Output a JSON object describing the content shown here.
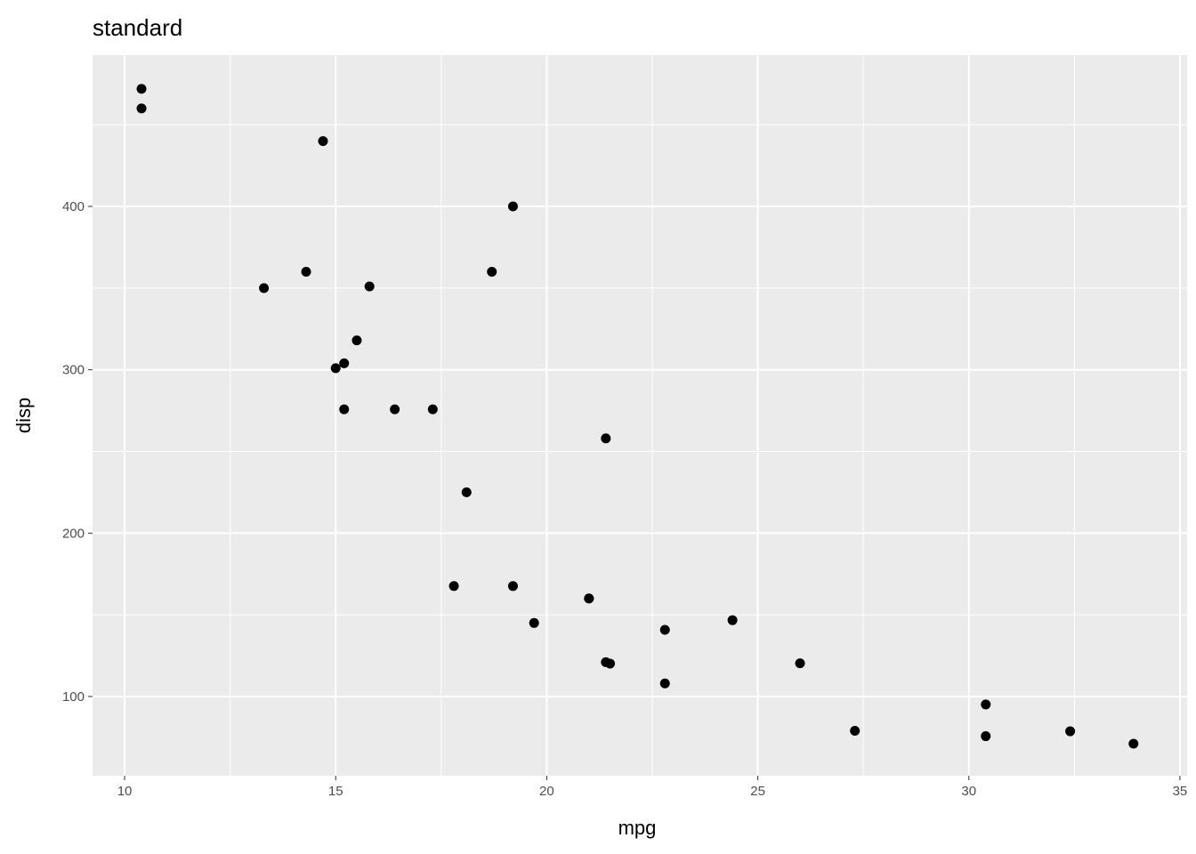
{
  "chart_data": {
    "type": "scatter",
    "title": "standard",
    "xlabel": "mpg",
    "ylabel": "disp",
    "xlim": [
      9.24,
      35.17
    ],
    "ylim": [
      51.5,
      492.6
    ],
    "xticks": [
      10,
      15,
      20,
      25,
      30,
      35
    ],
    "yticks": [
      100,
      200,
      300,
      400
    ],
    "grid": true,
    "panel_color": "#ebebeb",
    "point_color": "#000000",
    "points": [
      {
        "x": 21.0,
        "y": 160
      },
      {
        "x": 21.0,
        "y": 160
      },
      {
        "x": 22.8,
        "y": 108
      },
      {
        "x": 21.4,
        "y": 258
      },
      {
        "x": 18.7,
        "y": 360
      },
      {
        "x": 18.1,
        "y": 225
      },
      {
        "x": 14.3,
        "y": 360
      },
      {
        "x": 24.4,
        "y": 146.7
      },
      {
        "x": 22.8,
        "y": 140.8
      },
      {
        "x": 19.2,
        "y": 167.6
      },
      {
        "x": 17.8,
        "y": 167.6
      },
      {
        "x": 16.4,
        "y": 275.8
      },
      {
        "x": 17.3,
        "y": 275.8
      },
      {
        "x": 15.2,
        "y": 275.8
      },
      {
        "x": 10.4,
        "y": 472
      },
      {
        "x": 10.4,
        "y": 460
      },
      {
        "x": 14.7,
        "y": 440
      },
      {
        "x": 32.4,
        "y": 78.7
      },
      {
        "x": 30.4,
        "y": 75.7
      },
      {
        "x": 33.9,
        "y": 71.1
      },
      {
        "x": 21.5,
        "y": 120.1
      },
      {
        "x": 15.5,
        "y": 318
      },
      {
        "x": 15.2,
        "y": 304
      },
      {
        "x": 13.3,
        "y": 350
      },
      {
        "x": 19.2,
        "y": 400
      },
      {
        "x": 27.3,
        "y": 79
      },
      {
        "x": 26.0,
        "y": 120.3
      },
      {
        "x": 30.4,
        "y": 95.1
      },
      {
        "x": 15.8,
        "y": 351
      },
      {
        "x": 19.7,
        "y": 145
      },
      {
        "x": 15.0,
        "y": 301
      },
      {
        "x": 21.4,
        "y": 121
      }
    ]
  }
}
